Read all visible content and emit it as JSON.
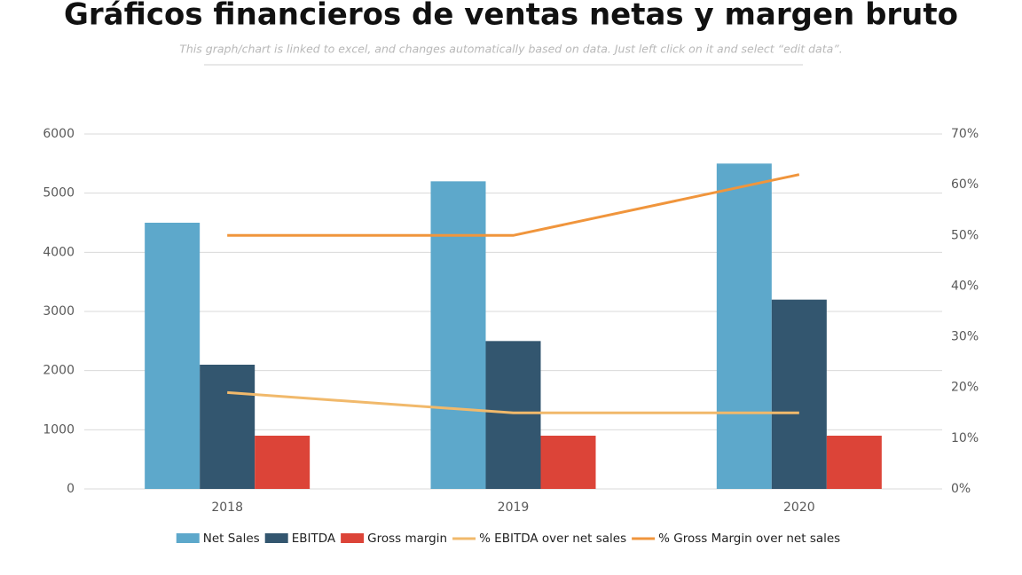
{
  "chart_data": {
    "type": "bar",
    "title": "Gráficos financieros de ventas netas y margen bruto",
    "subtitle": "This graph/chart is linked to excel, and changes automatically based on data. Just left click on it and select “edit data”.",
    "categories": [
      "2018",
      "2019",
      "2020"
    ],
    "series": [
      {
        "name": "Net Sales",
        "color": "#5da8cb",
        "values": [
          4500,
          5200,
          5500
        ]
      },
      {
        "name": "EBITDA",
        "color": "#33566f",
        "values": [
          2100,
          2500,
          3200
        ]
      },
      {
        "name": "Gross margin",
        "color": "#dc4438",
        "values": [
          900,
          900,
          900
        ]
      },
      {
        "name": "% EBITDA over net sales",
        "type": "line",
        "axis": "y2",
        "color": "#f1b96b",
        "values": [
          19,
          15,
          15
        ]
      },
      {
        "name": "% Gross Margin over net sales",
        "type": "line",
        "axis": "y2",
        "color": "#f0953c",
        "values": [
          50,
          50,
          62
        ]
      }
    ],
    "ylim": [
      0,
      6000
    ],
    "yticks": [
      0,
      1000,
      2000,
      3000,
      4000,
      5000,
      6000
    ],
    "y2lim": [
      0,
      70
    ],
    "y2ticks": [
      {
        "value": 0,
        "label": "0%"
      },
      {
        "value": 10,
        "label": "10%"
      },
      {
        "value": 20,
        "label": "20%"
      },
      {
        "value": 30,
        "label": "30%"
      },
      {
        "value": 40,
        "label": "40%"
      },
      {
        "value": 50,
        "label": "50%"
      },
      {
        "value": 60,
        "label": "60%"
      },
      {
        "value": 70,
        "label": "70%"
      }
    ],
    "grid": true,
    "legend": "bottom"
  }
}
